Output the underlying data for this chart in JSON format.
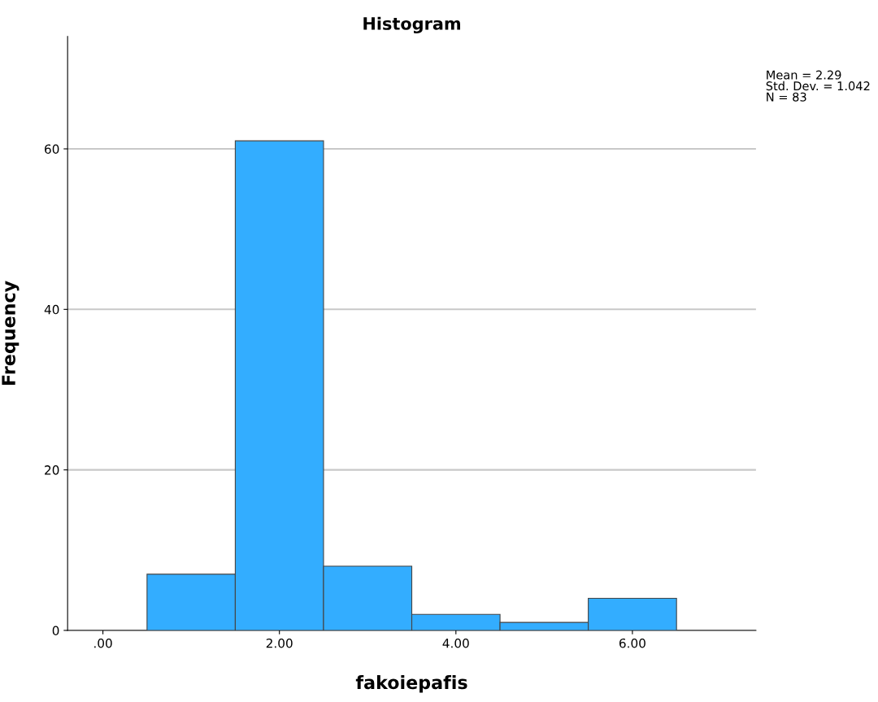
{
  "chart_data": {
    "type": "histogram",
    "title": "Histogram",
    "xlabel": "fakoiepafis",
    "ylabel": "Frequency",
    "bins": [
      0.5,
      1.5,
      2.5,
      3.5,
      4.5,
      5.5,
      6.5
    ],
    "values": [
      7,
      61,
      8,
      2,
      1,
      4
    ],
    "color": "#33adff",
    "xlim": [
      -0.4,
      7.4
    ],
    "xticks": [
      {
        "value": 0,
        "label": ".00"
      },
      {
        "value": 2,
        "label": "2.00"
      },
      {
        "value": 4,
        "label": "4.00"
      },
      {
        "value": 6,
        "label": "6.00"
      }
    ],
    "ylim": [
      0,
      74
    ],
    "yticks": [
      0,
      20,
      40,
      60
    ],
    "grid": "y",
    "annotations": [
      "Mean = 2.29\nStd. Dev. = 1.042\nN = 83"
    ]
  }
}
